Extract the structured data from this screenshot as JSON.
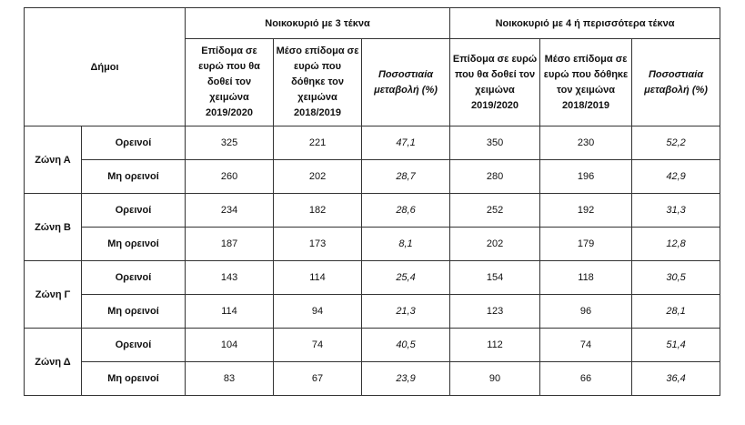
{
  "header": {
    "municipalities": "Δήμοι",
    "group1": "Νοικοκυριό με 3 τέκνα",
    "group2": "Νοικοκυριό με 4 ή περισσότερα τέκνα",
    "col1": "Επίδομα σε ευρώ που θα δοθεί τον χειμώνα 2019/2020",
    "col2": "Μέσο επίδομα σε ευρώ που δόθηκε τον χειμώνα 2018/2019",
    "col3": "Ποσοστιαία μεταβολή (%)"
  },
  "zones": [
    {
      "name": "Ζώνη Α",
      "rows": [
        {
          "type": "Ορεινοί",
          "v": [
            "325",
            "221",
            "47,1",
            "350",
            "230",
            "52,2"
          ]
        },
        {
          "type": "Μη ορεινοί",
          "v": [
            "260",
            "202",
            "28,7",
            "280",
            "196",
            "42,9"
          ]
        }
      ]
    },
    {
      "name": "Ζώνη Β",
      "rows": [
        {
          "type": "Ορεινοί",
          "v": [
            "234",
            "182",
            "28,6",
            "252",
            "192",
            "31,3"
          ]
        },
        {
          "type": "Μη ορεινοί",
          "v": [
            "187",
            "173",
            "8,1",
            "202",
            "179",
            "12,8"
          ]
        }
      ]
    },
    {
      "name": "Ζώνη Γ",
      "rows": [
        {
          "type": "Ορεινοί",
          "v": [
            "143",
            "114",
            "25,4",
            "154",
            "118",
            "30,5"
          ]
        },
        {
          "type": "Μη ορεινοί",
          "v": [
            "114",
            "94",
            "21,3",
            "123",
            "96",
            "28,1"
          ]
        }
      ]
    },
    {
      "name": "Ζώνη Δ",
      "rows": [
        {
          "type": "Ορεινοί",
          "v": [
            "104",
            "74",
            "40,5",
            "112",
            "74",
            "51,4"
          ]
        },
        {
          "type": "Μη ορεινοί",
          "v": [
            "83",
            "67",
            "23,9",
            "90",
            "66",
            "36,4"
          ]
        }
      ]
    }
  ]
}
